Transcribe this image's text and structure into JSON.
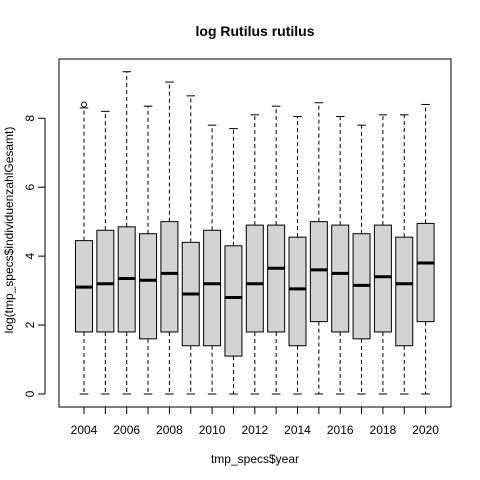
{
  "chart_data": {
    "type": "boxplot",
    "title": "log Rutilus rutilus",
    "xlabel": "tmp_specs$year",
    "ylabel": "log(tmp_specs$individuenzahlGesamt)",
    "categories": [
      "2004",
      "2005",
      "2006",
      "2007",
      "2008",
      "2009",
      "2010",
      "2011",
      "2012",
      "2013",
      "2014",
      "2015",
      "2016",
      "2017",
      "2018",
      "2019",
      "2020"
    ],
    "x_tick_labels": [
      "2004",
      "2006",
      "2008",
      "2010",
      "2012",
      "2014",
      "2016",
      "2018",
      "2020"
    ],
    "y_ticks": [
      0,
      2,
      4,
      6,
      8
    ],
    "ylim": [
      0,
      9.4
    ],
    "box_fill": "#d3d3d3",
    "boxes": [
      {
        "year": "2004",
        "min": 0,
        "q1": 1.8,
        "median": 3.1,
        "q3": 4.45,
        "max": 8.3,
        "outliers": [
          8.4
        ]
      },
      {
        "year": "2005",
        "min": 0,
        "q1": 1.8,
        "median": 3.2,
        "q3": 4.75,
        "max": 8.2,
        "outliers": []
      },
      {
        "year": "2006",
        "min": 0,
        "q1": 1.8,
        "median": 3.35,
        "q3": 4.85,
        "max": 9.35,
        "outliers": []
      },
      {
        "year": "2007",
        "min": 0,
        "q1": 1.6,
        "median": 3.3,
        "q3": 4.65,
        "max": 8.35,
        "outliers": []
      },
      {
        "year": "2008",
        "min": 0,
        "q1": 1.8,
        "median": 3.5,
        "q3": 5.0,
        "max": 9.05,
        "outliers": []
      },
      {
        "year": "2009",
        "min": 0,
        "q1": 1.4,
        "median": 2.9,
        "q3": 4.4,
        "max": 8.65,
        "outliers": []
      },
      {
        "year": "2010",
        "min": 0,
        "q1": 1.4,
        "median": 3.2,
        "q3": 4.75,
        "max": 7.8,
        "outliers": []
      },
      {
        "year": "2011",
        "min": 0,
        "q1": 1.1,
        "median": 2.8,
        "q3": 4.3,
        "max": 7.7,
        "outliers": []
      },
      {
        "year": "2012",
        "min": 0,
        "q1": 1.8,
        "median": 3.2,
        "q3": 4.9,
        "max": 8.1,
        "outliers": []
      },
      {
        "year": "2013",
        "min": 0,
        "q1": 1.8,
        "median": 3.65,
        "q3": 4.9,
        "max": 8.35,
        "outliers": []
      },
      {
        "year": "2014",
        "min": 0,
        "q1": 1.4,
        "median": 3.05,
        "q3": 4.55,
        "max": 8.05,
        "outliers": []
      },
      {
        "year": "2015",
        "min": 0,
        "q1": 2.1,
        "median": 3.6,
        "q3": 5.0,
        "max": 8.45,
        "outliers": []
      },
      {
        "year": "2016",
        "min": 0,
        "q1": 1.8,
        "median": 3.5,
        "q3": 4.9,
        "max": 8.05,
        "outliers": []
      },
      {
        "year": "2017",
        "min": 0,
        "q1": 1.6,
        "median": 3.15,
        "q3": 4.65,
        "max": 7.8,
        "outliers": []
      },
      {
        "year": "2018",
        "min": 0,
        "q1": 1.8,
        "median": 3.4,
        "q3": 4.9,
        "max": 8.1,
        "outliers": []
      },
      {
        "year": "2019",
        "min": 0,
        "q1": 1.4,
        "median": 3.2,
        "q3": 4.55,
        "max": 8.1,
        "outliers": []
      },
      {
        "year": "2020",
        "min": 0,
        "q1": 2.1,
        "median": 3.8,
        "q3": 4.95,
        "max": 8.4,
        "outliers": []
      }
    ]
  }
}
